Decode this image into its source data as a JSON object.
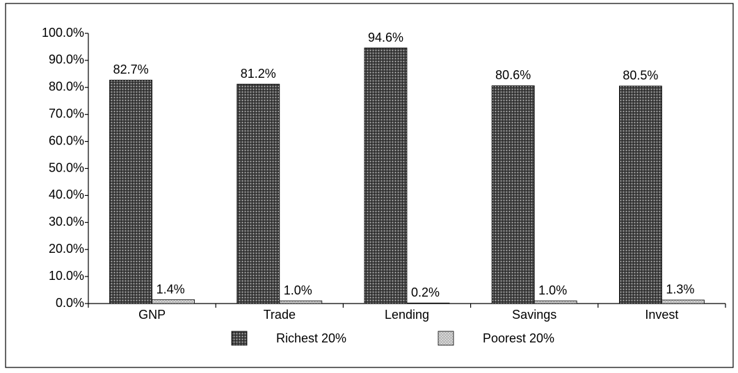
{
  "chart_data": {
    "type": "bar",
    "categories": [
      "GNP",
      "Trade",
      "Lending",
      "Savings",
      "Invest"
    ],
    "series": [
      {
        "name": "Richest 20%",
        "color": "#4a4a4a",
        "values": [
          82.7,
          81.2,
          94.6,
          80.6,
          80.5
        ],
        "value_labels": [
          "82.7%",
          "81.2%",
          "94.6%",
          "80.6%",
          "80.5%"
        ]
      },
      {
        "name": "Poorest 20%",
        "color": "#bdbdbd",
        "values": [
          1.4,
          1.0,
          0.2,
          1.0,
          1.3
        ],
        "value_labels": [
          "1.4%",
          "1.0%",
          "0.2%",
          "1.0%",
          "1.3%"
        ]
      }
    ],
    "ylim": [
      0,
      100
    ],
    "yticks": [
      {
        "value": 0,
        "label": "0.0%"
      },
      {
        "value": 10,
        "label": "10.0%"
      },
      {
        "value": 20,
        "label": "20.0%"
      },
      {
        "value": 30,
        "label": "30.0%"
      },
      {
        "value": 40,
        "label": "40.0%"
      },
      {
        "value": 50,
        "label": "50.0%"
      },
      {
        "value": 60,
        "label": "60.0%"
      },
      {
        "value": 70,
        "label": "70.0%"
      },
      {
        "value": 80,
        "label": "80.0%"
      },
      {
        "value": 90,
        "label": "90.0%"
      },
      {
        "value": 100,
        "label": "100.0%"
      }
    ],
    "legend": "bottom"
  }
}
